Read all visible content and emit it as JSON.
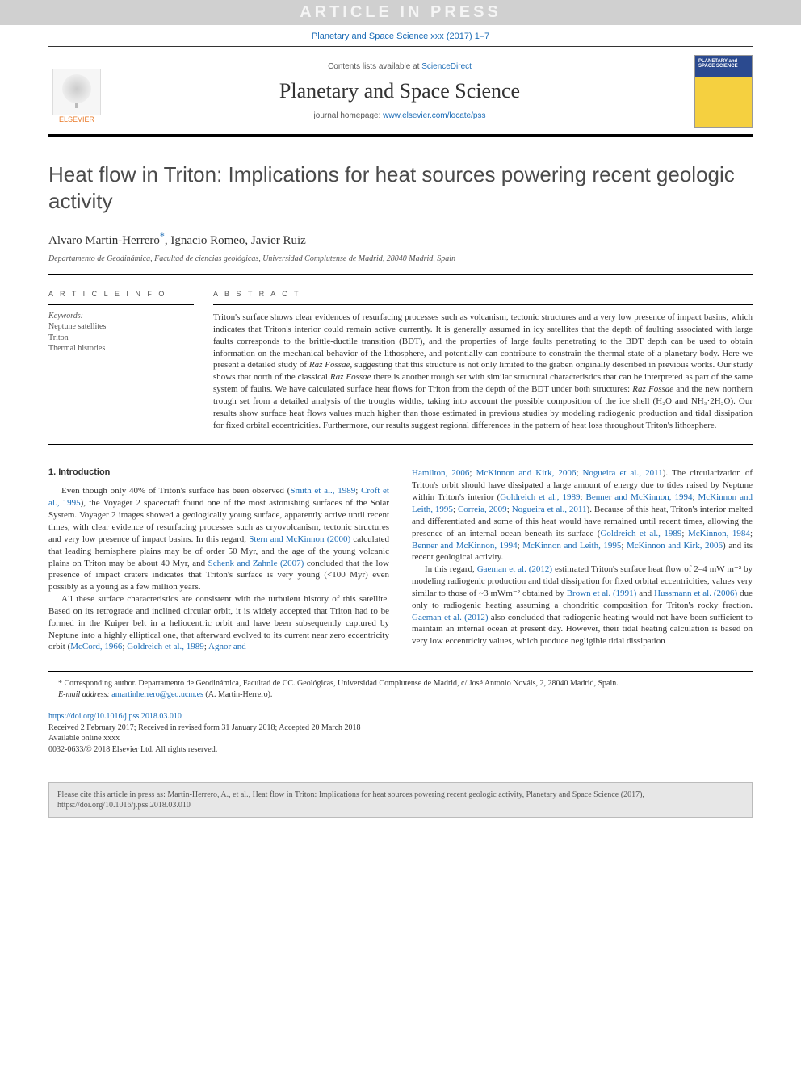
{
  "top_bar": {
    "label": "ARTICLE IN PRESS"
  },
  "citation_line": "Planetary and Space Science xxx (2017) 1–7",
  "header": {
    "contents_prefix": "Contents lists available at ",
    "contents_link": "ScienceDirect",
    "journal_name": "Planetary and Space Science",
    "homepage_prefix": "journal homepage: ",
    "homepage_url": "www.elsevier.com/locate/pss",
    "elsevier_logo_label": "ELSEVIER",
    "cover_text": "PLANETARY and SPACE SCIENCE"
  },
  "colors": {
    "link": "#1a6bb5",
    "brand_orange": "#e97826",
    "rule": "#000000",
    "body_text": "#333333",
    "muted": "#555555",
    "cite_bg": "#e7e7e7"
  },
  "article": {
    "title": "Heat flow in Triton: Implications for heat sources powering recent geologic activity",
    "authors_html": "Alvaro Martin-Herrero",
    "authors_rest": ", Ignacio Romeo, Javier Ruiz",
    "corr_marker": "*",
    "affiliation": "Departamento de Geodinámica, Facultad de ciencias geológicas, Universidad Complutense de Madrid, 28040 Madrid, Spain",
    "articleinfo_label": "A R T I C L E   I N F O",
    "abstract_label": "A B S T R A C T",
    "keywords_header": "Keywords:",
    "keywords": [
      "Neptune satellites",
      "Triton",
      "Thermal histories"
    ],
    "abstract": "Triton's surface shows clear evidences of resurfacing processes such as volcanism, tectonic structures and a very low presence of impact basins, which indicates that Triton's interior could remain active currently. It is generally assumed in icy satellites that the depth of faulting associated with large faults corresponds to the brittle-ductile transition (BDT), and the properties of large faults penetrating to the BDT depth can be used to obtain information on the mechanical behavior of the lithosphere, and potentially can contribute to constrain the thermal state of a planetary body. Here we present a detailed study of Raz Fossae, suggesting that this structure is not only limited to the graben originally described in previous works. Our study shows that north of the classical Raz Fossae there is another trough set with similar structural characteristics that can be interpreted as part of the same system of faults. We have calculated surface heat flows for Triton from the depth of the BDT under both structures: Raz Fossae and the new northern trough set from a detailed analysis of the troughs widths, taking into account the possible composition of the ice shell (H₂O and NH₃·2H₂O). Our results show surface heat flows values much higher than those estimated in previous studies by modeling radiogenic production and tidal dissipation for fixed orbital eccentricities. Furthermore, our results suggest regional differences in the pattern of heat loss throughout Triton's lithosphere."
  },
  "introduction": {
    "heading": "1. Introduction",
    "col1": {
      "p1": "Even though only 40% of Triton's surface has been observed (Smith et al., 1989; Croft et al., 1995), the Voyager 2 spacecraft found one of the most astonishing surfaces of the Solar System. Voyager 2 images showed a geologically young surface, apparently active until recent times, with clear evidence of resurfacing processes such as cryovolcanism, tectonic structures and very low presence of impact basins. In this regard, Stern and McKinnon (2000) calculated that leading hemisphere plains may be of order 50 Myr, and the age of the young volcanic plains on Triton may be about 40 Myr, and Schenk and Zahnle (2007) concluded that the low presence of impact craters indicates that Triton's surface is very young (<100 Myr) even possibly as a young as a few million years.",
      "p2": "All these surface characteristics are consistent with the turbulent history of this satellite. Based on its retrograde and inclined circular orbit, it is widely accepted that Triton had to be formed in the Kuiper belt in a heliocentric orbit and have been subsequently captured by Neptune into a highly elliptical one, that afterward evolved to its current near zero eccentricity orbit (McCord, 1966; Goldreich et al., 1989; Agnor and"
    },
    "col2": {
      "p1": "Hamilton, 2006; McKinnon and Kirk, 2006; Nogueira et al., 2011). The circularization of Triton's orbit should have dissipated a large amount of energy due to tides raised by Neptune within Triton's interior (Goldreich et al., 1989; Benner and McKinnon, 1994; McKinnon and Leith, 1995; Correia, 2009; Nogueira et al., 2011). Because of this heat, Triton's interior melted and differentiated and some of this heat would have remained until recent times, allowing the presence of an internal ocean beneath its surface (Goldreich et al., 1989; McKinnon, 1984; Benner and McKinnon, 1994; McKinnon and Leith, 1995; McKinnon and Kirk, 2006) and its recent geological activity.",
      "p2": "In this regard, Gaeman et al. (2012) estimated Triton's surface heat flow of 2–4 mW m⁻² by modeling radiogenic production and tidal dissipation for fixed orbital eccentricities, values very similar to those of ~3 mWm⁻² obtained by Brown et al. (1991) and Hussmann et al. (2006) due only to radiogenic heating assuming a chondritic composition for Triton's rocky fraction. Gaeman et al. (2012) also concluded that radiogenic heating would not have been sufficient to maintain an internal ocean at present day. However, their tidal heating calculation is based on very low eccentricity values, which produce negligible tidal dissipation"
    }
  },
  "footnotes": {
    "corresponding": "* Corresponding author. Departamento de Geodinámica, Facultad de CC. Geológicas, Universidad Complutense de Madrid, c/ José Antonio Nováis, 2, 28040 Madrid, Spain.",
    "email_label": "E-mail address: ",
    "email": "amartinherrero@geo.ucm.es",
    "email_suffix": " (A. Martin-Herrero)."
  },
  "doi": {
    "url": "https://doi.org/10.1016/j.pss.2018.03.010",
    "history": "Received 2 February 2017; Received in revised form 31 January 2018; Accepted 20 March 2018",
    "available": "Available online xxxx",
    "copyright": "0032-0633/© 2018 Elsevier Ltd. All rights reserved."
  },
  "cite_box": "Please cite this article in press as: Martin-Herrero, A., et al., Heat flow in Triton: Implications for heat sources powering recent geologic activity, Planetary and Space Science (2017), https://doi.org/10.1016/j.pss.2018.03.010"
}
